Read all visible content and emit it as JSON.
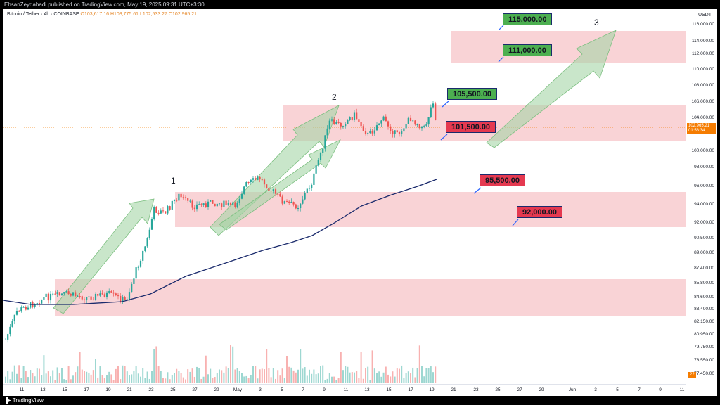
{
  "header": {
    "publisher": "EhsanZeydabadi published on TradingView.com, May 19, 2025 09:31 UTC+3:30"
  },
  "legend": {
    "symbol": "Bitcoin / Tether · 4h · COINBASE",
    "open": "O103,617.16",
    "high": "H103,775.61",
    "low": "L102,533.27",
    "close": "C102,965.21"
  },
  "price_axis": {
    "currency": "USDT",
    "ticks": [
      "116,000.00",
      "114,000.00",
      "112,000.00",
      "110,000.00",
      "108,000.00",
      "106,000.00",
      "104,000.00",
      "100,000.00",
      "98,000.00",
      "96,000.00",
      "94,000.00",
      "92,000.00",
      "90,500.00",
      "89,000.00",
      "87,400.00",
      "85,800.00",
      "84,600.00",
      "83,400.00",
      "82,150.00",
      "80,950.00",
      "79,750.00",
      "78,550.00",
      "77,450.00"
    ],
    "current_price": "102,965.21",
    "countdown": "01:58:34",
    "volume_badge": "22"
  },
  "time_axis": {
    "ticks": [
      "11",
      "13",
      "15",
      "17",
      "19",
      "21",
      "23",
      "25",
      "27",
      "29",
      "May",
      "3",
      "5",
      "7",
      "9",
      "11",
      "13",
      "15",
      "17",
      "19",
      "21",
      "23",
      "25",
      "27",
      "29",
      "Jun",
      "3",
      "5",
      "7",
      "9",
      "11"
    ]
  },
  "annotations": {
    "levels": [
      {
        "label": "115,000.00",
        "style": "green"
      },
      {
        "label": "111,000.00",
        "style": "green"
      },
      {
        "label": "105,500.00",
        "style": "green"
      },
      {
        "label": "101,500.00",
        "style": "red"
      },
      {
        "label": "95,500.00",
        "style": "red"
      },
      {
        "label": "92,000.00",
        "style": "red"
      }
    ],
    "waves": [
      "1",
      "2",
      "3"
    ]
  },
  "colors": {
    "up": "#26a69a",
    "down": "#ef5350",
    "zone": "#f8c8cc",
    "ma": "#1a2a6c",
    "arrow": "#a5d6a7",
    "accent": "#f57c00"
  },
  "footer": {
    "brand": "TradingView"
  }
}
